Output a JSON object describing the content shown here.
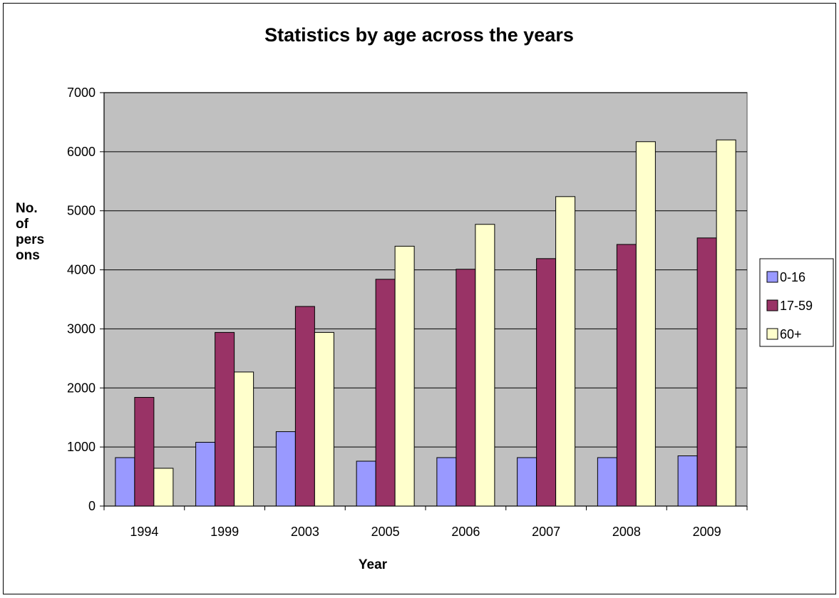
{
  "chart_data": {
    "type": "bar",
    "title": "Statistics by age across the years",
    "xlabel": "Year",
    "ylabel_lines": [
      "No.",
      "of",
      "pers",
      "ons"
    ],
    "categories": [
      "1994",
      "1999",
      "2003",
      "2005",
      "2006",
      "2007",
      "2008",
      "2009"
    ],
    "series": [
      {
        "name": "0-16",
        "color": "#9999ff",
        "values": [
          820,
          1080,
          1260,
          760,
          820,
          820,
          820,
          850
        ]
      },
      {
        "name": "17-59",
        "color": "#993366",
        "values": [
          1840,
          2940,
          3380,
          3840,
          4010,
          4190,
          4430,
          4540
        ]
      },
      {
        "name": "60+",
        "color": "#ffffcc",
        "values": [
          640,
          2270,
          2940,
          4400,
          4770,
          5240,
          6170,
          6200
        ]
      }
    ],
    "ylim": [
      0,
      7000
    ],
    "yticks": [
      0,
      1000,
      2000,
      3000,
      4000,
      5000,
      6000,
      7000
    ],
    "grid": true,
    "legend_position": "right",
    "plot_background": "#c0c0c0"
  }
}
